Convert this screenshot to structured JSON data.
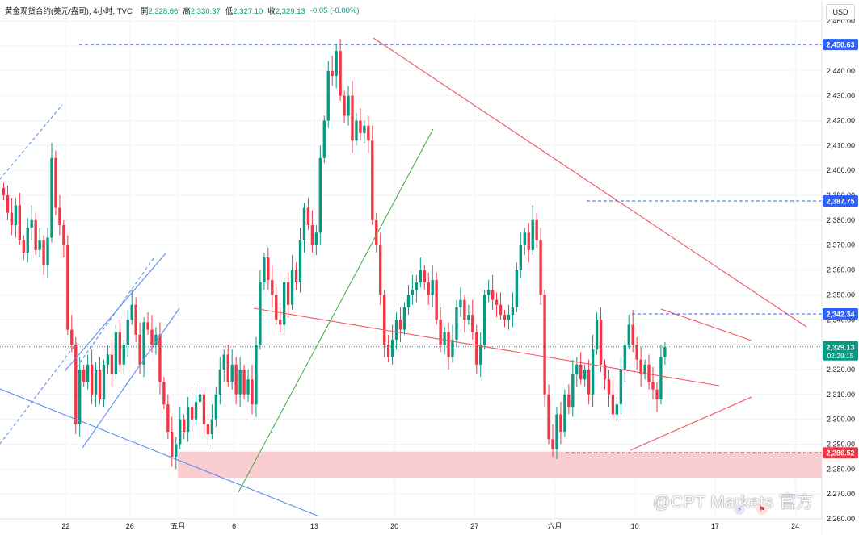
{
  "legend": {
    "symbol": "黄金现货合约(美元/盎司), 4小时, TVC",
    "open_label": "開",
    "open": "2,328.66",
    "high_label": "高",
    "high": "2,330.37",
    "low_label": "低",
    "low": "2,327.10",
    "close_label": "收",
    "close": "2,329.13",
    "change": "-0.05 (-0.00%)"
  },
  "currency": "USD",
  "watermark": "@CPT Markets 官方",
  "colors": {
    "up": "#089981",
    "down": "#f23645",
    "trend_red": "#f7525f",
    "trend_blue": "#5b8def",
    "trend_green": "#4caf50",
    "zone": "#f9c4c8",
    "price_box": "#2962ff"
  },
  "chart_data": {
    "type": "candlestick",
    "title": "黄金现货合约(美元/盎司), 4小时, TVC",
    "ylim": [
      2260,
      2462
    ],
    "y_ticks": [
      "2,260.00",
      "2,270.00",
      "2,280.00",
      "2,290.00",
      "2,300.00",
      "2,310.00",
      "2,320.00",
      "2,330.00",
      "2,340.00",
      "2,350.00",
      "2,360.00",
      "2,370.00",
      "2,380.00",
      "2,390.00",
      "2,400.00",
      "2,410.00",
      "2,420.00",
      "2,430.00",
      "2,440.00",
      "2,450.00",
      "2,460.00"
    ],
    "x_ticks": [
      {
        "label": "22",
        "i": 16
      },
      {
        "label": "26",
        "i": 32
      },
      {
        "label": "五月",
        "i": 44
      },
      {
        "label": "6",
        "i": 58
      },
      {
        "label": "13",
        "i": 78
      },
      {
        "label": "20",
        "i": 98
      },
      {
        "label": "27",
        "i": 118
      },
      {
        "label": "六月",
        "i": 138
      },
      {
        "label": "10",
        "i": 158
      },
      {
        "label": "17",
        "i": 178
      },
      {
        "label": "24",
        "i": 198
      }
    ],
    "price_labels": [
      {
        "text": "2,450.63",
        "value": 2450.63
      },
      {
        "text": "2,387.75",
        "value": 2387.75
      },
      {
        "text": "2,342.34",
        "value": 2342.34
      },
      {
        "text": "2,286.52",
        "value": 2286.52
      }
    ],
    "current_price": {
      "text": "2,329.13",
      "value": 2329.13,
      "countdown": "02:29:15"
    },
    "support_zone": [
      2276.5,
      2287
    ],
    "closes": [
      2390,
      2383,
      2378,
      2386,
      2372,
      2367,
      2377,
      2380,
      2368,
      2372,
      2362,
      2373,
      2405,
      2385,
      2378,
      2370,
      2336,
      2330,
      2298,
      2320,
      2315,
      2322,
      2310,
      2320,
      2308,
      2322,
      2326,
      2318,
      2335,
      2322,
      2330,
      2340,
      2346,
      2334,
      2322,
      2339,
      2336,
      2330,
      2334,
      2315,
      2306,
      2295,
      2285,
      2290,
      2300,
      2295,
      2305,
      2300,
      2307,
      2310,
      2298,
      2294,
      2300,
      2310,
      2320,
      2326,
      2315,
      2322,
      2310,
      2320,
      2310,
      2316,
      2306,
      2330,
      2355,
      2365,
      2356,
      2350,
      2340,
      2338,
      2355,
      2346,
      2360,
      2355,
      2372,
      2385,
      2378,
      2370,
      2375,
      2405,
      2420,
      2440,
      2438,
      2448,
      2430,
      2422,
      2430,
      2412,
      2420,
      2415,
      2418,
      2412,
      2380,
      2370,
      2350,
      2330,
      2325,
      2332,
      2340,
      2336,
      2345,
      2350,
      2352,
      2355,
      2360,
      2355,
      2350,
      2356,
      2340,
      2330,
      2335,
      2325,
      2332,
      2345,
      2348,
      2340,
      2342,
      2335,
      2322,
      2330,
      2350,
      2352,
      2348,
      2346,
      2342,
      2340,
      2342,
      2345,
      2360,
      2370,
      2375,
      2368,
      2380,
      2372,
      2350,
      2310,
      2292,
      2288,
      2302,
      2295,
      2310,
      2305,
      2318,
      2322,
      2316,
      2320,
      2310,
      2328,
      2340,
      2322,
      2316,
      2310,
      2302,
      2306,
      2320,
      2330,
      2338,
      2330,
      2324,
      2318,
      2322,
      2315,
      2312,
      2308,
      2325,
      2329
    ],
    "trendlines": [
      {
        "name": "upper-channel-dashed-1",
        "color": "trend_blue",
        "dashed": true,
        "from": [
          0,
          2400
        ],
        "to": [
          18,
          2428
        ]
      },
      {
        "name": "lower-channel-dashed-1",
        "color": "trend_blue",
        "dashed": true,
        "from": [
          0,
          2290
        ],
        "to": [
          50,
          2345
        ]
      },
      {
        "name": "long-support-blue",
        "color": "trend_blue",
        "dashed": false,
        "from": [
          0,
          2305
        ],
        "to": [
          95,
          2262
        ]
      }
    ]
  }
}
